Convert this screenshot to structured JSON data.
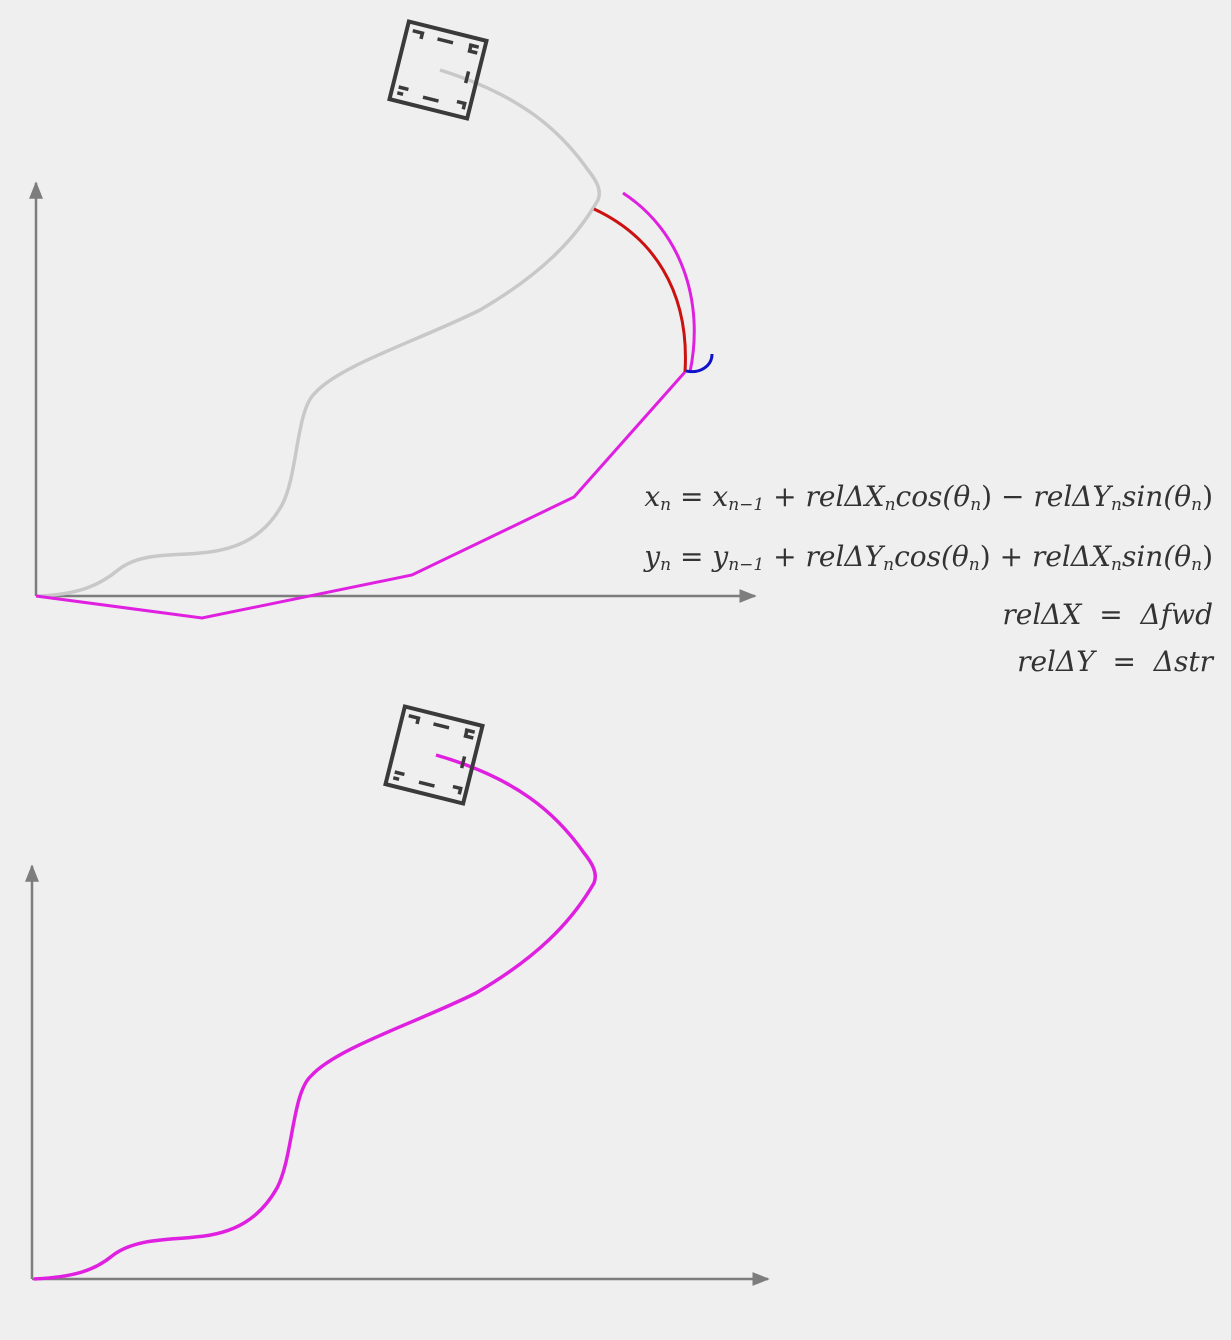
{
  "equations": {
    "x_line": {
      "lhs": "x",
      "lhs_sub": "n",
      "eq": "=",
      "prev": "x",
      "prev_sub": "n−1",
      "op1": "+",
      "term1": "relΔX",
      "term1_sub": "n",
      "fn1": "cos(θ",
      "fn1_sub": "n",
      "close1": ")",
      "op2": "−",
      "term2": "relΔY",
      "term2_sub": "n",
      "fn2": "sin(θ",
      "fn2_sub": "n",
      "close2": ")"
    },
    "y_line": {
      "lhs": "y",
      "lhs_sub": "n",
      "eq": "=",
      "prev": "y",
      "prev_sub": "n−1",
      "op1": "+",
      "term1": "relΔY",
      "term1_sub": "n",
      "fn1": "cos(θ",
      "fn1_sub": "n",
      "close1": ")",
      "op2": "+",
      "term2": "relΔX",
      "term2_sub": "n",
      "fn2": "sin(θ",
      "fn2_sub": "n",
      "close2": ")"
    },
    "rel_x": "relΔX  =  Δfwd",
    "rel_y": "relΔY  =  Δstr"
  },
  "colors": {
    "axis": "#7d7d7d",
    "true_path": "#c8c8c8",
    "estimated_path": "#e020e0",
    "arc_red": "#cc1111",
    "arc_blue": "#1111cc",
    "robot": "#3a3a3a"
  }
}
